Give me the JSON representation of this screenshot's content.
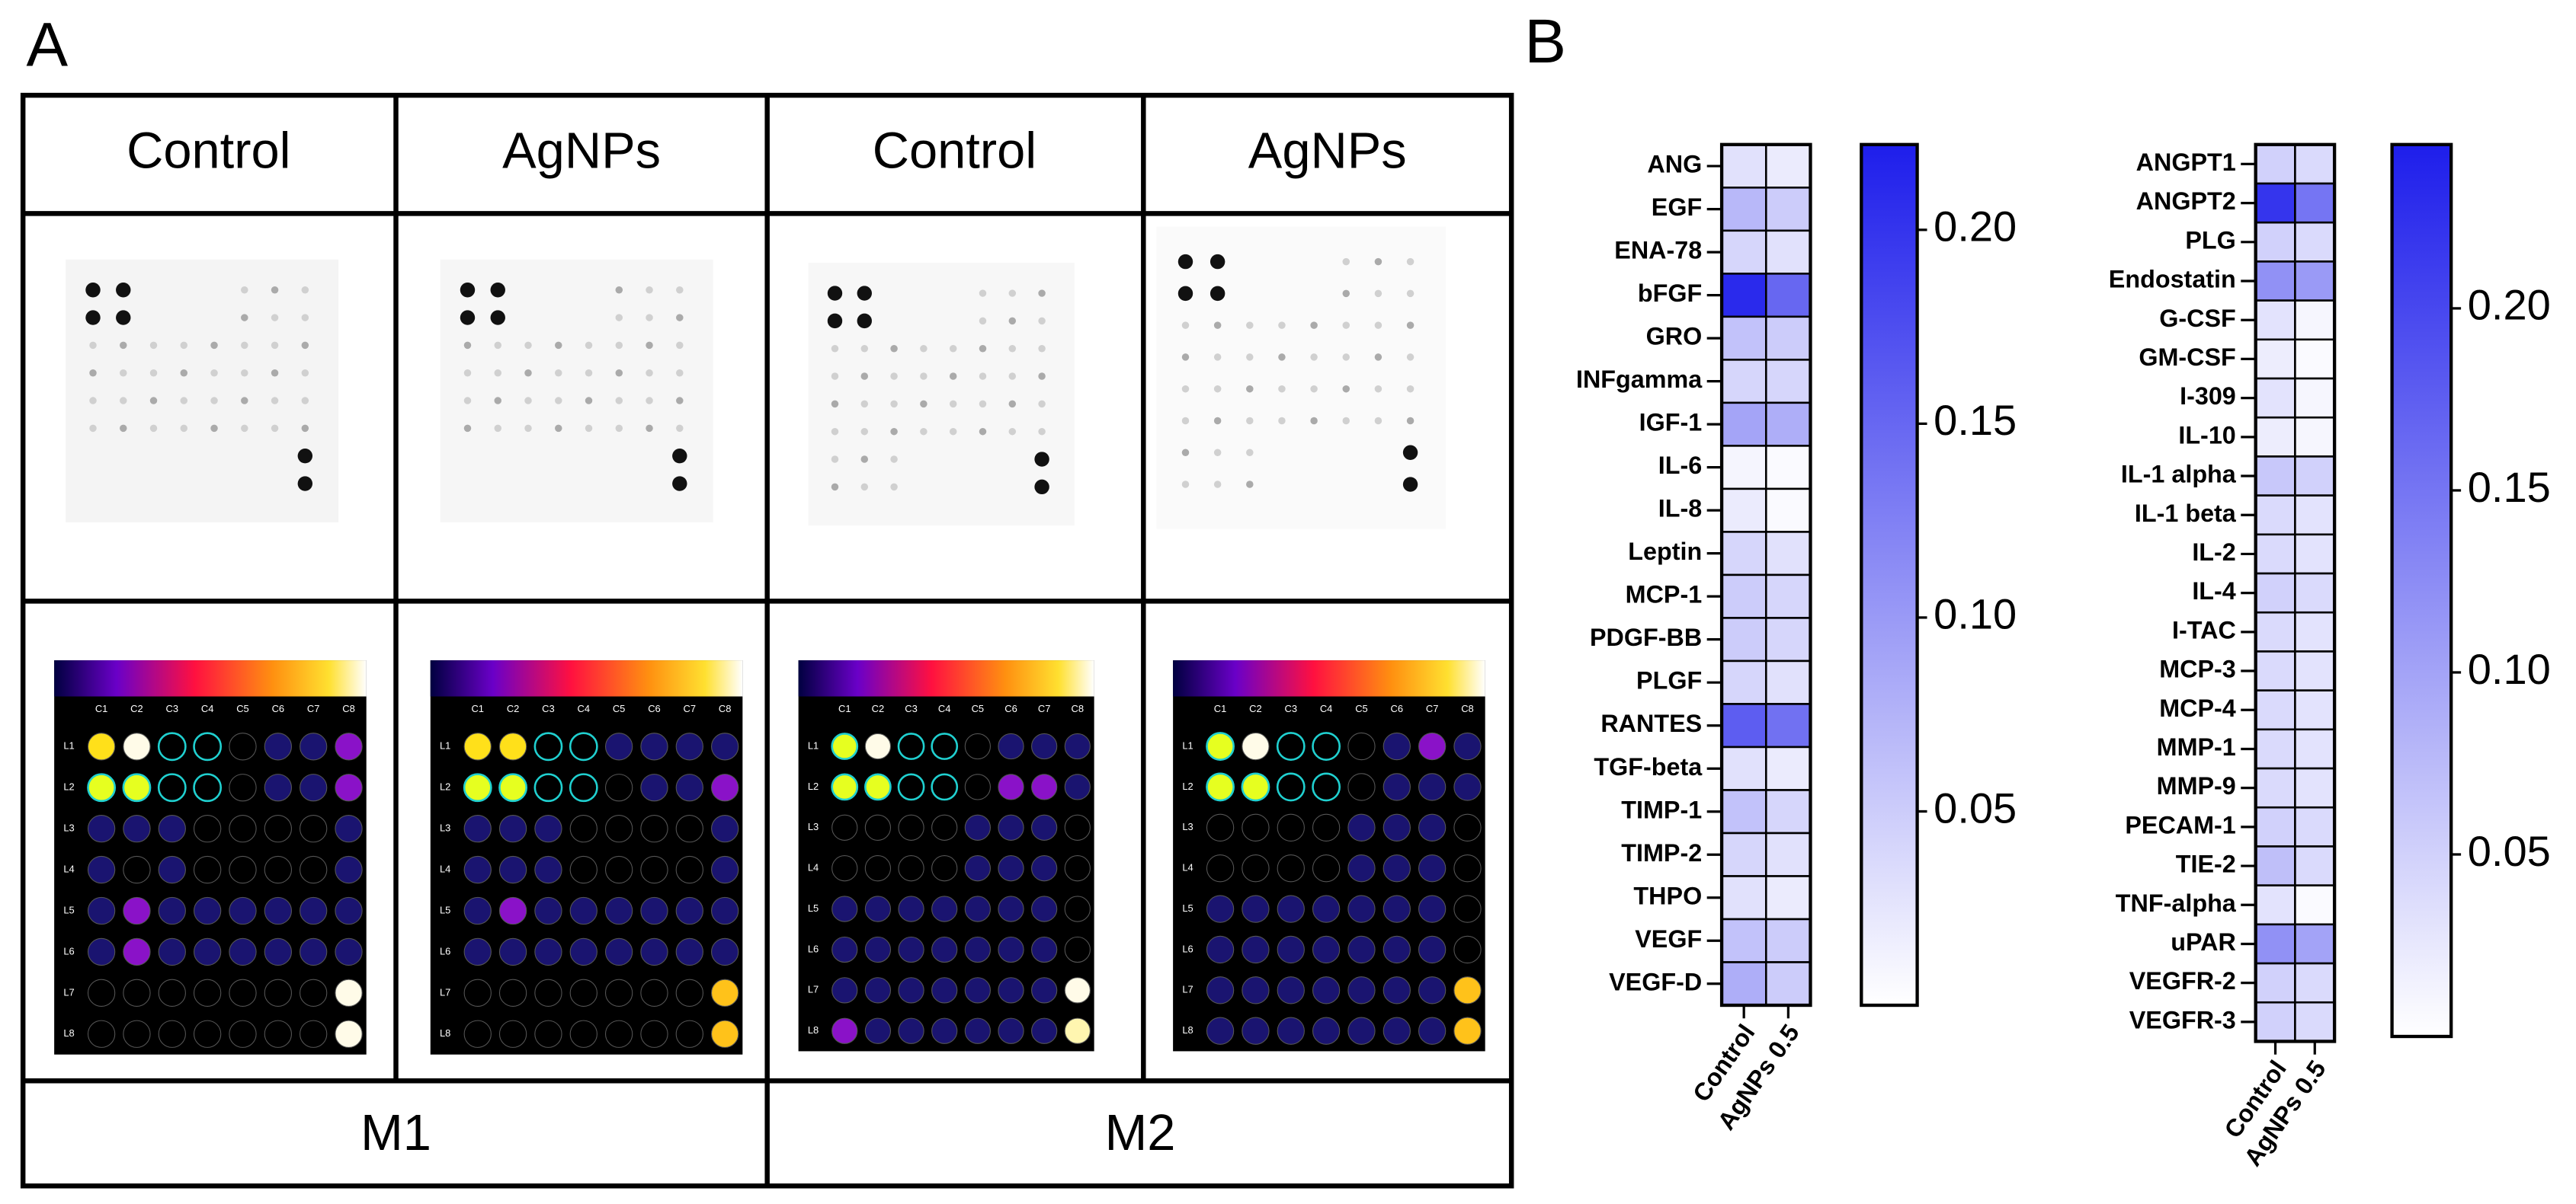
{
  "panel_a": {
    "label": "A",
    "headers": [
      "Control",
      "AgNPs",
      "Control",
      "AgNPs"
    ],
    "groups": [
      "M1",
      "M2"
    ],
    "array_columns": [
      "C1",
      "C2",
      "C3",
      "C4",
      "C5",
      "C6",
      "C7",
      "C8"
    ],
    "array_rows": [
      "L1",
      "L2",
      "L3",
      "L4",
      "L5",
      "L6",
      "L7",
      "L8"
    ]
  },
  "panel_b": {
    "label": "B"
  },
  "chart_data": [
    {
      "type": "heatmap",
      "rows": [
        "ANG",
        "EGF",
        "ENA-78",
        "bFGF",
        "GRO",
        "INFgamma",
        "IGF-1",
        "IL-6",
        "IL-8",
        "Leptin",
        "MCP-1",
        "PDGF-BB",
        "PLGF",
        "RANTES",
        "TGF-beta",
        "TIMP-1",
        "TIMP-2",
        "THPO",
        "VEGF",
        "VEGF-D"
      ],
      "columns": [
        "Control",
        "AgNPs 0.5"
      ],
      "values": [
        [
          0.03,
          0.02
        ],
        [
          0.07,
          0.05
        ],
        [
          0.04,
          0.03
        ],
        [
          0.21,
          0.15
        ],
        [
          0.06,
          0.05
        ],
        [
          0.04,
          0.04
        ],
        [
          0.09,
          0.08
        ],
        [
          0.01,
          0.005
        ],
        [
          0.02,
          0.005
        ],
        [
          0.04,
          0.03
        ],
        [
          0.05,
          0.04
        ],
        [
          0.05,
          0.04
        ],
        [
          0.04,
          0.03
        ],
        [
          0.16,
          0.14
        ],
        [
          0.03,
          0.02
        ],
        [
          0.06,
          0.04
        ],
        [
          0.04,
          0.03
        ],
        [
          0.03,
          0.02
        ],
        [
          0.06,
          0.05
        ],
        [
          0.08,
          0.05
        ]
      ],
      "zlim": [
        0,
        0.222
      ],
      "zticks": [
        {
          "value": 0.05,
          "label": "0.05"
        },
        {
          "value": 0.1,
          "label": "0.10"
        },
        {
          "value": 0.15,
          "label": "0.15"
        },
        {
          "value": 0.2,
          "label": "0.20"
        }
      ],
      "colormap": [
        "#ffffff",
        "#1e1eeb"
      ]
    },
    {
      "type": "heatmap",
      "rows": [
        "ANGPT1",
        "ANGPT2",
        "PLG",
        "Endostatin",
        "G-CSF",
        "GM-CSF",
        "I-309",
        "IL-10",
        "IL-1 alpha",
        "IL-1 beta",
        "IL-2",
        "IL-4",
        "I-TAC",
        "MCP-3",
        "MCP-4",
        "MMP-1",
        "MMP-9",
        "PECAM-1",
        "TIE-2",
        "TNF-alpha",
        "uPAR",
        "VEGFR-2",
        "VEGFR-3"
      ],
      "columns": [
        "Control",
        "AgNPs 0.5"
      ],
      "values": [
        [
          0.05,
          0.04
        ],
        [
          0.22,
          0.15
        ],
        [
          0.05,
          0.04
        ],
        [
          0.12,
          0.11
        ],
        [
          0.03,
          0.01
        ],
        [
          0.02,
          0.005
        ],
        [
          0.03,
          0.01
        ],
        [
          0.02,
          0.01
        ],
        [
          0.06,
          0.05
        ],
        [
          0.04,
          0.03
        ],
        [
          0.04,
          0.03
        ],
        [
          0.05,
          0.04
        ],
        [
          0.04,
          0.03
        ],
        [
          0.04,
          0.03
        ],
        [
          0.04,
          0.03
        ],
        [
          0.04,
          0.03
        ],
        [
          0.04,
          0.03
        ],
        [
          0.05,
          0.04
        ],
        [
          0.07,
          0.04
        ],
        [
          0.03,
          0.005
        ],
        [
          0.12,
          0.1
        ],
        [
          0.05,
          0.04
        ],
        [
          0.05,
          0.04
        ]
      ],
      "zlim": [
        0,
        0.245
      ],
      "zticks": [
        {
          "value": 0.05,
          "label": "0.05"
        },
        {
          "value": 0.1,
          "label": "0.10"
        },
        {
          "value": 0.15,
          "label": "0.15"
        },
        {
          "value": 0.2,
          "label": "0.20"
        }
      ],
      "colormap": [
        "#ffffff",
        "#1e1eeb"
      ]
    }
  ]
}
